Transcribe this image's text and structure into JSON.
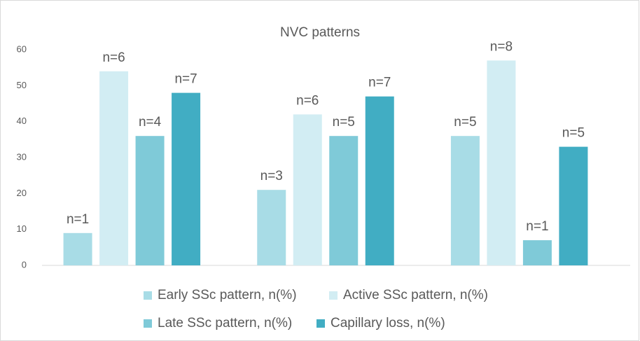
{
  "chart_data": {
    "type": "bar",
    "title": "NVC patterns",
    "categories": [
      null,
      null,
      null
    ],
    "series": [
      {
        "name": "Early SSc pattern, n(%)",
        "color": "#a8dce6",
        "values": [
          9,
          21,
          36
        ],
        "labels": [
          "n=1",
          "n=3",
          "n=5"
        ]
      },
      {
        "name": "Active SSc pattern, n(%)",
        "color": "#d2edf3",
        "values": [
          54,
          42,
          57
        ],
        "labels": [
          "n=6",
          "n=6",
          "n=8"
        ]
      },
      {
        "name": "Late SSc pattern, n(%)",
        "color": "#7fcad8",
        "values": [
          36,
          36,
          7
        ],
        "labels": [
          "n=4",
          "n=5",
          "n=1"
        ]
      },
      {
        "name": "Capillary loss, n(%)",
        "color": "#41adc3",
        "values": [
          48,
          47,
          33
        ],
        "labels": [
          "n=7",
          "n=7",
          "n=5"
        ]
      }
    ],
    "ylim": [
      0,
      60
    ],
    "yticks": [
      0,
      10,
      20,
      30,
      40,
      50,
      60
    ],
    "grid": false,
    "legend": "bottom"
  }
}
